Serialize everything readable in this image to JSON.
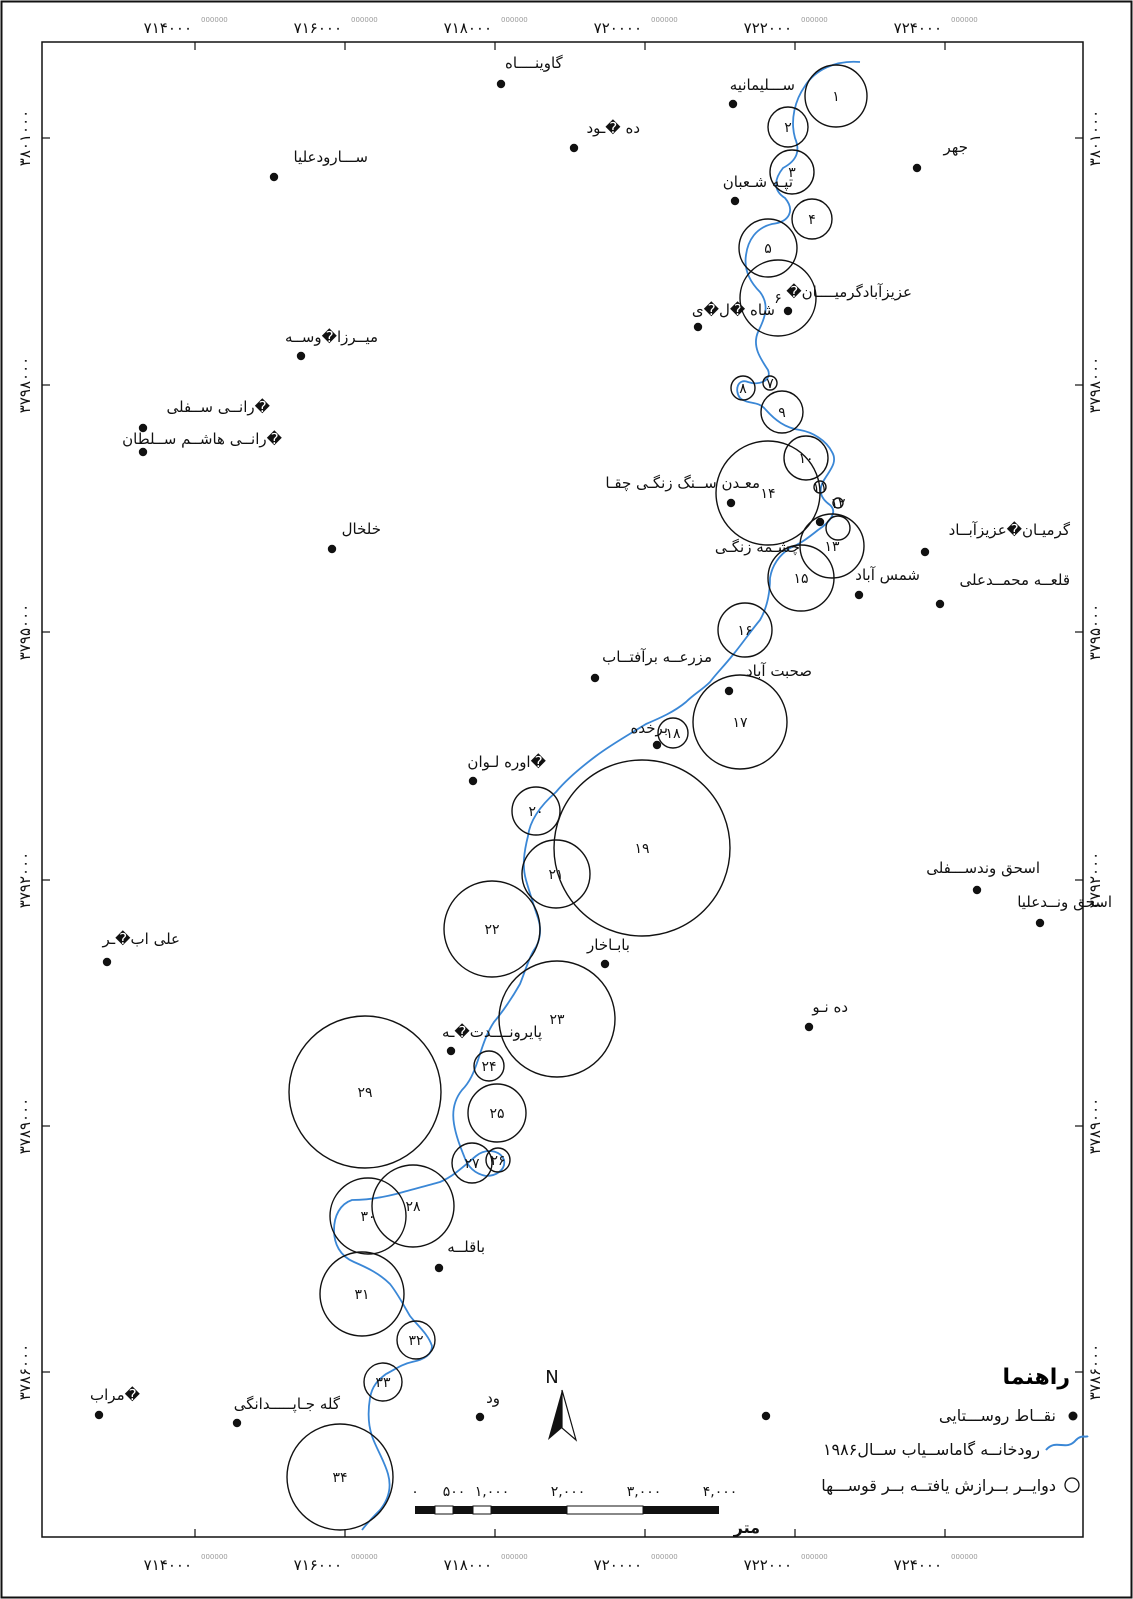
{
  "x_ticks": [
    "۷۱۴۰۰۰",
    "۷۱۶۰۰۰",
    "۷۱۸۰۰۰",
    "۷۲۰۰۰۰",
    "۷۲۲۰۰۰",
    "۷۲۴۰۰۰"
  ],
  "x_tick_suffix": "000000",
  "y_ticks": [
    "۳۸۰۱۰۰۰",
    "۳۷۹۸۰۰۰",
    "۳۷۹۵۰۰۰",
    "۳۷۹۲۰۰۰",
    "۳۷۸۹۰۰۰",
    "۳۷۸۶۰۰۰"
  ],
  "villages": [
    {
      "name": "گاوینــــاه"
    },
    {
      "name": "ده �ـود"
    },
    {
      "name": "ســـارودعلیا"
    },
    {
      "name": "ســـلیمانیه"
    },
    {
      "name": "جهر"
    },
    {
      "name": "تپـه شـعبان"
    },
    {
      "name": "�عزیزآبادگرمیــــان"
    },
    {
      "name": "شاه �ل�ی"
    },
    {
      "name": "میــرزا�وســه"
    },
    {
      "name": "رانــی ســفلی�"
    },
    {
      "name": "رانــی هاشــم ســلطان�"
    },
    {
      "name": "معـدن ســنگ زنگـی چقـا"
    },
    {
      "name": "خلخال"
    },
    {
      "name": "چشـمه زنگـی"
    },
    {
      "name": "گرمیـان�عزیزآبــاد"
    },
    {
      "name": "شمس آباد"
    },
    {
      "name": "قلعــه محمــدعلی"
    },
    {
      "name": "مزرعــه برآفتــاب"
    },
    {
      "name": "صحبت آباد"
    },
    {
      "name": "برخده"
    },
    {
      "name": "اوره لـوان�"
    },
    {
      "name": "اسحق وندســـفلی"
    },
    {
      "name": "اسحق ونــدعلیا"
    },
    {
      "name": "علی اب�ـر"
    },
    {
      "name": "بابـاخار"
    },
    {
      "name": "ده نـو"
    },
    {
      "name": "پایرونــــدت�ـه"
    },
    {
      "name": "باقلــه"
    },
    {
      "name": "مراب�"
    },
    {
      "name": "گله جـاپـــــدانگی"
    },
    {
      "name": "ود"
    }
  ],
  "circles": [
    "۱",
    "۲",
    "۳",
    "۴",
    "۵",
    "۶",
    "۷",
    "۸",
    "۹",
    "۱۰",
    "۱۱",
    "۱۲",
    "۱۳",
    "۱۴",
    "۱۵",
    "۱۶",
    "۱۷",
    "۱۸",
    "۱۹",
    "۲۰",
    "۲۱",
    "۲۲",
    "۲۳",
    "۲۴",
    "۲۵",
    "۲۶",
    "۲۷",
    "۲۸",
    "۲۹",
    "۳۰",
    "۳۱",
    "۳۲",
    "۳۳",
    "۳۴"
  ],
  "north_arrow": "N",
  "legend": {
    "title": "راهنما",
    "items": [
      {
        "symbol": "point",
        "label": "نقــاط روســـتایی"
      },
      {
        "symbol": "river",
        "label": "رودخانــه گاماســیاب ســال۱۹۸۶"
      },
      {
        "symbol": "circle",
        "label": "دوایــر بــرازش یافتــه بــر قوســـها"
      }
    ]
  },
  "scale_bar": {
    "labels": [
      "۰",
      "۵۰۰",
      "۱,۰۰۰",
      "۲,۰۰۰",
      "۳,۰۰۰",
      "۴,۰۰۰"
    ],
    "unit": "متر"
  },
  "colors": {
    "river": "#3a87d6",
    "circle": "#111111",
    "frame": "#111111"
  }
}
